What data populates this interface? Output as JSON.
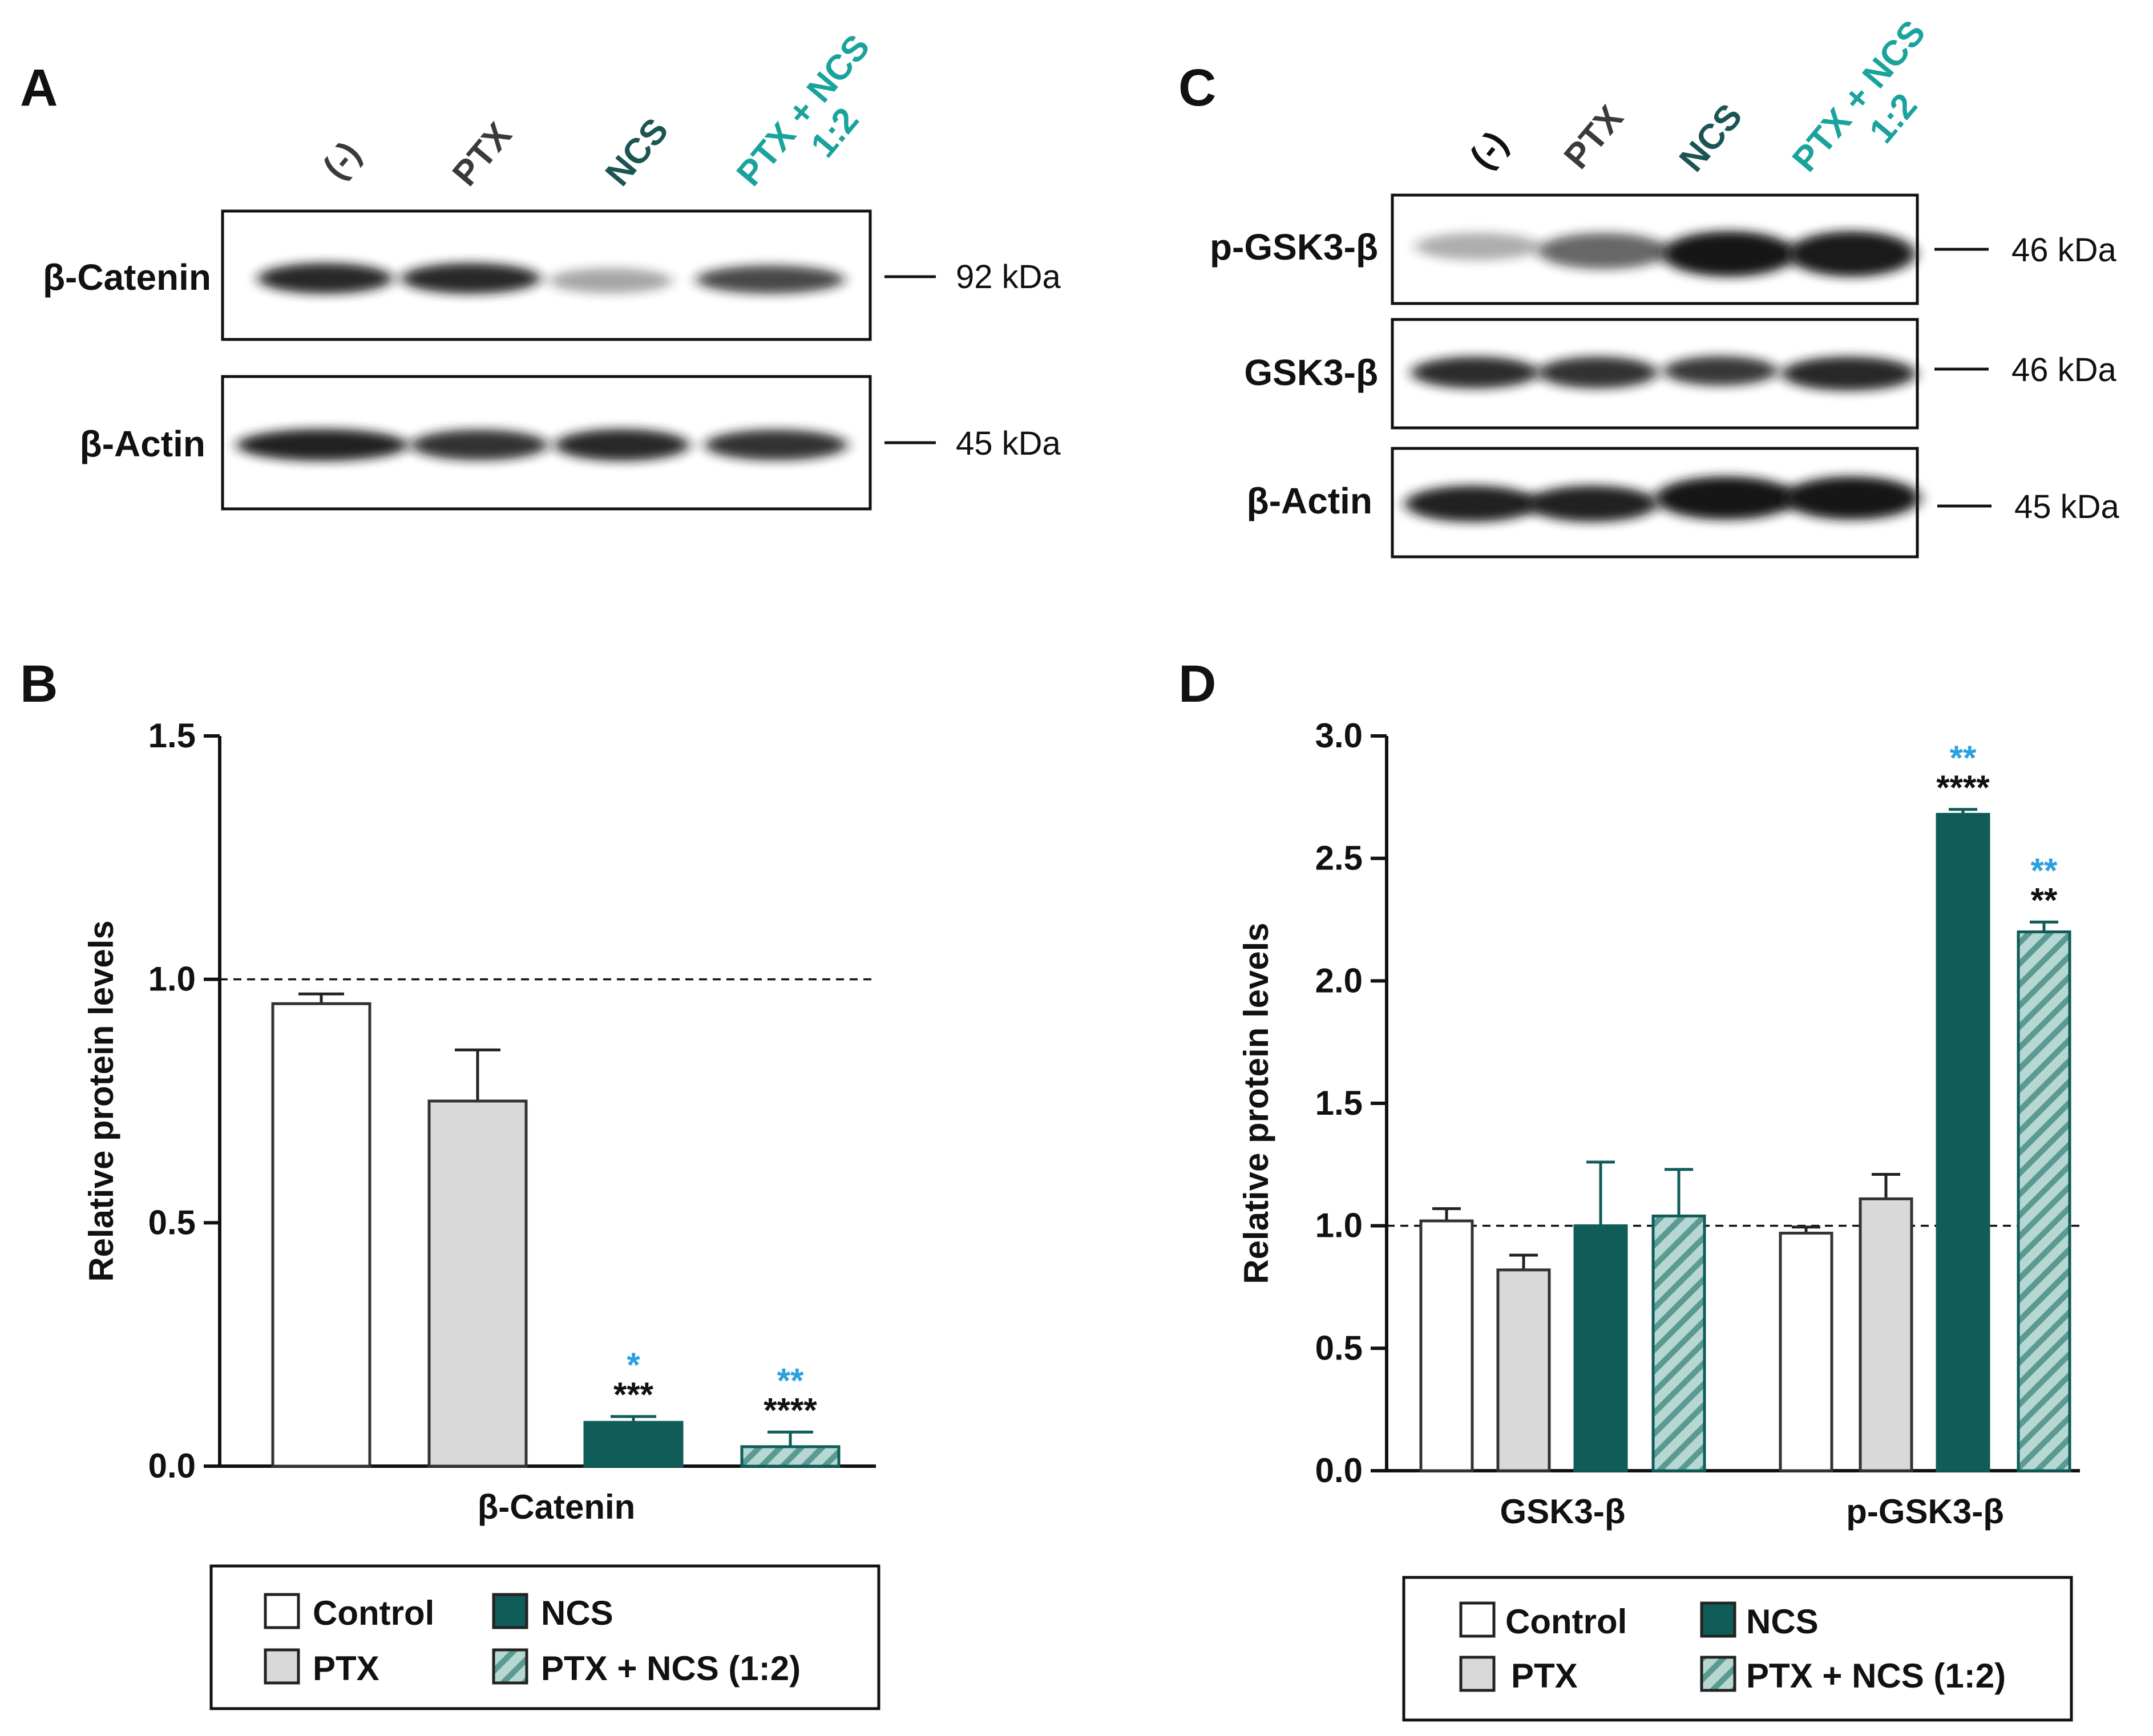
{
  "panel_labels": {
    "a": "A",
    "b": "B",
    "c": "C",
    "d": "D"
  },
  "colors": {
    "control": "#ffffff",
    "ptx": "#d9d9d9",
    "ncs": "#0f5c59",
    "combo_fill": "#b7d8d2",
    "combo_hatch": "#5a9a92",
    "lane_label_dark": "#3a3a3a",
    "lane_label_ncs": "#1b5553",
    "lane_label_combo": "#1aa39c",
    "sig_blue": "#2b9fe0",
    "sig_black": "#111111",
    "band": "#141414"
  },
  "blot_a": {
    "lanes": [
      "(-)",
      "PTX",
      "NCS",
      "PTX + NCS",
      "1:2"
    ],
    "rows": [
      {
        "label": "β-Catenin",
        "kda": "92 kDa",
        "intensity": [
          0.92,
          0.92,
          0.38,
          0.78
        ]
      },
      {
        "label": "β-Actin",
        "kda": "45 kDa",
        "intensity": [
          0.95,
          0.88,
          0.92,
          0.88
        ]
      }
    ]
  },
  "blot_c": {
    "lanes": [
      "(-)",
      "PTX",
      "NCS",
      "PTX + NCS",
      "1:2"
    ],
    "rows": [
      {
        "label": "p-GSK3-β",
        "kda": "46 kDa",
        "intensity": [
          0.35,
          0.65,
          1.0,
          0.98
        ]
      },
      {
        "label": "GSK3-β",
        "kda": "46 kDa",
        "intensity": [
          0.9,
          0.88,
          0.85,
          0.92
        ]
      },
      {
        "label": "β-Actin",
        "kda": "45 kDa",
        "intensity": [
          0.95,
          0.95,
          1.0,
          1.0
        ]
      }
    ]
  },
  "legend": {
    "control": "Control",
    "ptx": "PTX",
    "ncs": "NCS",
    "combo": "PTX + NCS (1:2)"
  },
  "chart_data": [
    {
      "panel": "B",
      "type": "bar",
      "title": "",
      "xlabel": "β-Catenin",
      "ylabel": "Relative protein levels",
      "ylim": [
        0,
        1.5
      ],
      "yticks": [
        "0.0",
        "0.5",
        "1.0",
        "1.5"
      ],
      "reference_line": 1.0,
      "categories": [
        "β-Catenin"
      ],
      "series": [
        {
          "name": "Control",
          "values": [
            0.95
          ],
          "error": [
            0.02
          ],
          "sig_blue": [
            ""
          ],
          "sig_black": [
            ""
          ]
        },
        {
          "name": "PTX",
          "values": [
            0.75
          ],
          "error": [
            0.105
          ],
          "sig_blue": [
            ""
          ],
          "sig_black": [
            ""
          ]
        },
        {
          "name": "NCS",
          "values": [
            0.09
          ],
          "error": [
            0.012
          ],
          "sig_blue": [
            "*"
          ],
          "sig_black": [
            "***"
          ]
        },
        {
          "name": "PTX + NCS (1:2)",
          "values": [
            0.04
          ],
          "error": [
            0.03
          ],
          "sig_blue": [
            "**"
          ],
          "sig_black": [
            "****"
          ]
        }
      ]
    },
    {
      "panel": "D",
      "type": "bar",
      "title": "",
      "xlabel": "",
      "ylabel": "Relative protein levels",
      "ylim": [
        0,
        3.0
      ],
      "yticks": [
        "0.0",
        "0.5",
        "1.0",
        "1.5",
        "2.0",
        "2.5",
        "3.0"
      ],
      "reference_line": 1.0,
      "categories": [
        "GSK3-β",
        "p-GSK3-β"
      ],
      "series": [
        {
          "name": "Control",
          "values": [
            1.02,
            0.97
          ],
          "error": [
            0.05,
            0.025
          ],
          "sig_blue": [
            "",
            ""
          ],
          "sig_black": [
            "",
            ""
          ]
        },
        {
          "name": "PTX",
          "values": [
            0.82,
            1.11
          ],
          "error": [
            0.06,
            0.1
          ],
          "sig_blue": [
            "",
            ""
          ],
          "sig_black": [
            "",
            ""
          ]
        },
        {
          "name": "NCS",
          "values": [
            1.0,
            2.68
          ],
          "error": [
            0.26,
            0.02
          ],
          "sig_blue": [
            "",
            "**"
          ],
          "sig_black": [
            "",
            "****"
          ]
        },
        {
          "name": "PTX + NCS (1:2)",
          "values": [
            1.04,
            2.2
          ],
          "error": [
            0.19,
            0.04
          ],
          "sig_blue": [
            "",
            "**"
          ],
          "sig_black": [
            "",
            "**"
          ]
        }
      ]
    }
  ]
}
